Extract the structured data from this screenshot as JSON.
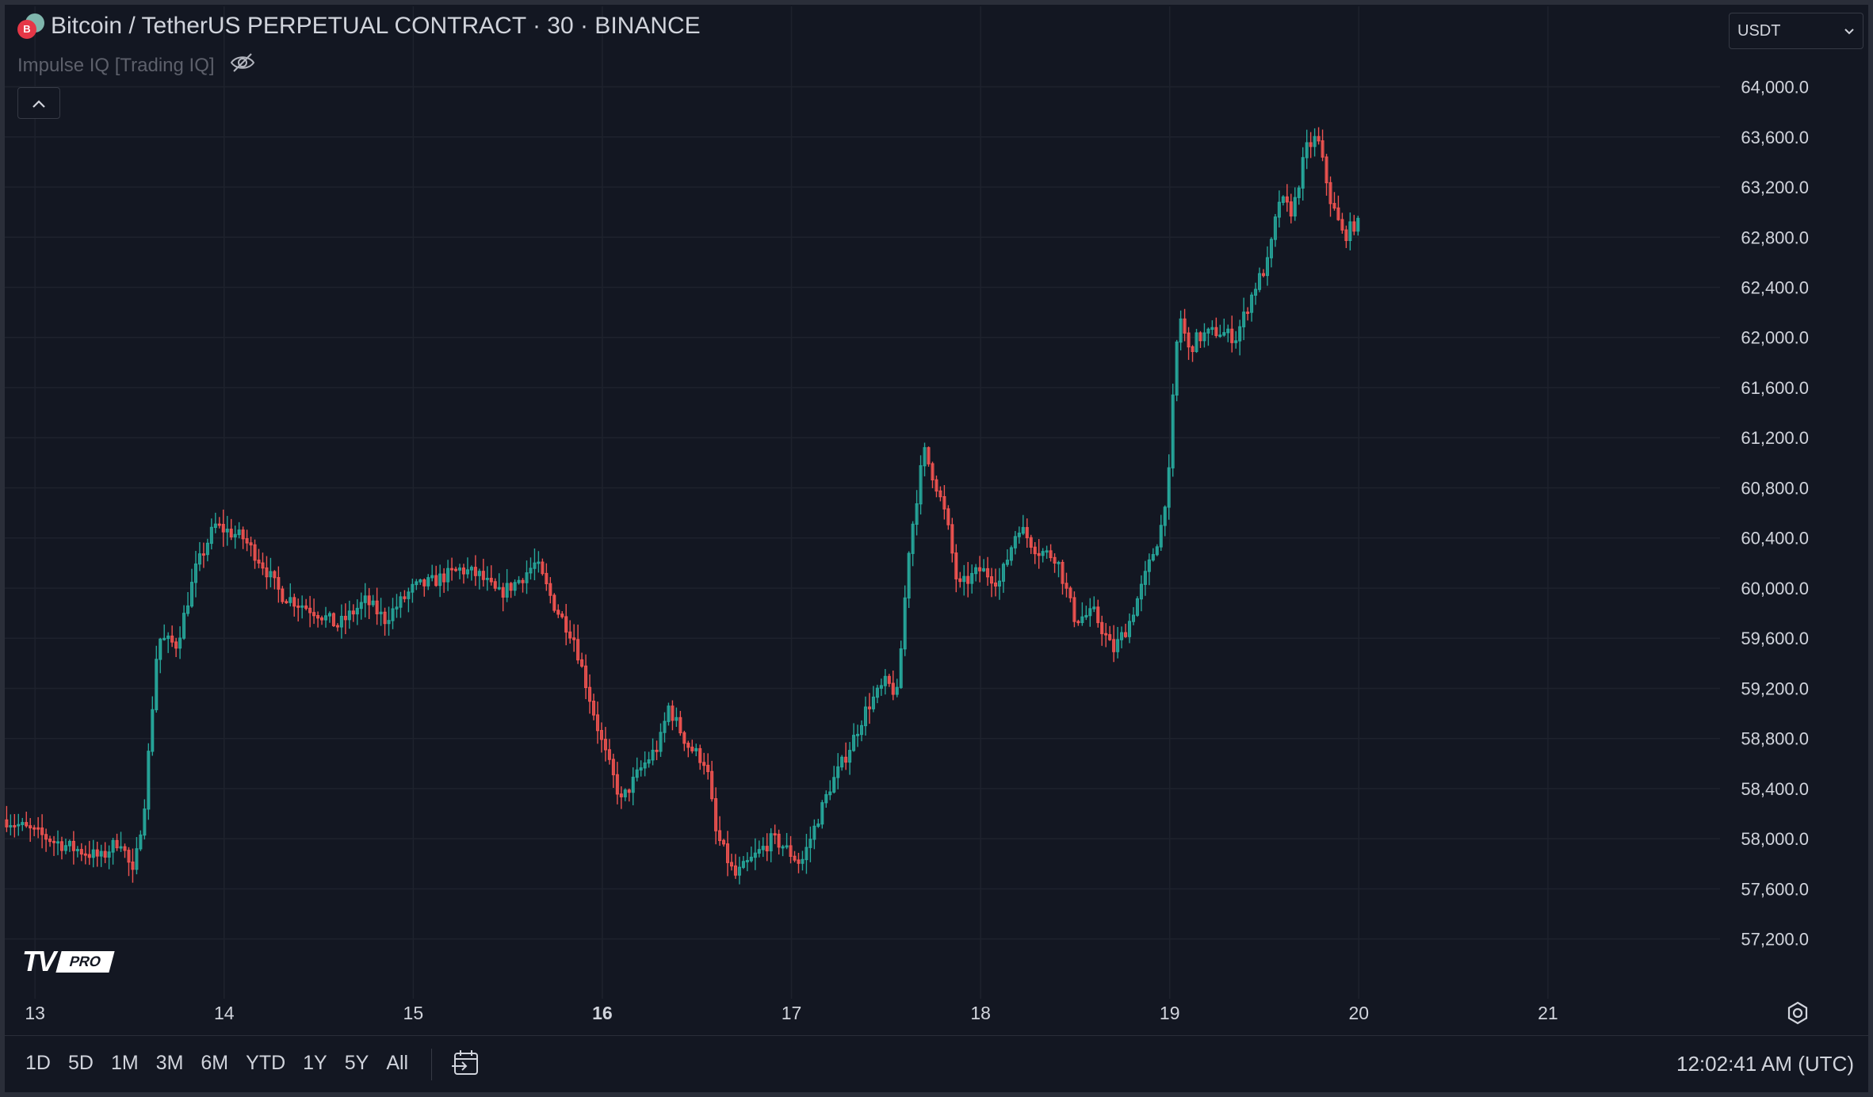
{
  "header": {
    "coin_badge": "B",
    "symbol_title": "Bitcoin / TetherUS PERPETUAL CONTRACT · 30 · BINANCE",
    "indicator_name": "Impulse IQ [Trading IQ]",
    "collapse_icon": "chevron-up-icon",
    "visibility_icon": "eye-off-icon"
  },
  "currency_select": {
    "value": "USDT"
  },
  "logo": {
    "mark": "TV",
    "badge": "PRO"
  },
  "bottom_bar": {
    "ranges": [
      "1D",
      "5D",
      "1M",
      "3M",
      "6M",
      "YTD",
      "1Y",
      "5Y",
      "All"
    ],
    "goto_date_icon": "calendar-arrow-icon",
    "clock": "12:02:41 AM (UTC)"
  },
  "colors": {
    "background": "#131722",
    "grid": "#1e222d",
    "up": "#26a69a",
    "down": "#ef5350",
    "text": "#d1d4dc"
  },
  "chart_data": {
    "type": "candlestick",
    "title": "",
    "xlabel": "",
    "ylabel": "",
    "interval": "30",
    "x_ticks": [
      "13",
      "14",
      "15",
      "16",
      "17",
      "18",
      "19",
      "20",
      "21"
    ],
    "bold_x_tick": "16",
    "y_ticks": [
      "64,000.0",
      "63,600.0",
      "63,200.0",
      "62,800.0",
      "62,400.0",
      "62,000.0",
      "61,600.0",
      "61,200.0",
      "60,800.0",
      "60,400.0",
      "60,000.0",
      "59,600.0",
      "59,200.0",
      "58,800.0",
      "58,400.0",
      "58,000.0",
      "57,600.0",
      "57,200.0"
    ],
    "ylim": [
      56850,
      64250
    ],
    "xlim_days": [
      12.84,
      21.91
    ],
    "grid": true,
    "close_path": [
      [
        12.85,
        58150
      ],
      [
        13.0,
        58050
      ],
      [
        13.15,
        57950
      ],
      [
        13.35,
        57850
      ],
      [
        13.45,
        58000
      ],
      [
        13.52,
        57700
      ],
      [
        13.58,
        58300
      ],
      [
        13.65,
        59600
      ],
      [
        13.75,
        59550
      ],
      [
        13.85,
        60150
      ],
      [
        13.95,
        60500
      ],
      [
        14.1,
        60400
      ],
      [
        14.2,
        60200
      ],
      [
        14.3,
        59950
      ],
      [
        14.5,
        59800
      ],
      [
        14.6,
        59700
      ],
      [
        14.75,
        59900
      ],
      [
        14.85,
        59750
      ],
      [
        15.0,
        60000
      ],
      [
        15.1,
        60050
      ],
      [
        15.25,
        60150
      ],
      [
        15.35,
        60100
      ],
      [
        15.45,
        59950
      ],
      [
        15.55,
        60050
      ],
      [
        15.65,
        60200
      ],
      [
        15.75,
        59850
      ],
      [
        15.85,
        59600
      ],
      [
        15.92,
        59200
      ],
      [
        16.0,
        58750
      ],
      [
        16.1,
        58300
      ],
      [
        16.2,
        58550
      ],
      [
        16.3,
        58750
      ],
      [
        16.35,
        59050
      ],
      [
        16.45,
        58750
      ],
      [
        16.55,
        58600
      ],
      [
        16.6,
        58050
      ],
      [
        16.7,
        57700
      ],
      [
        16.8,
        57850
      ],
      [
        16.9,
        58000
      ],
      [
        16.95,
        57950
      ],
      [
        17.05,
        57800
      ],
      [
        17.1,
        58000
      ],
      [
        17.2,
        58400
      ],
      [
        17.3,
        58700
      ],
      [
        17.4,
        59050
      ],
      [
        17.5,
        59250
      ],
      [
        17.56,
        59150
      ],
      [
        17.62,
        60300
      ],
      [
        17.7,
        61100
      ],
      [
        17.76,
        60850
      ],
      [
        17.82,
        60550
      ],
      [
        17.88,
        60000
      ],
      [
        18.0,
        60150
      ],
      [
        18.1,
        60050
      ],
      [
        18.2,
        60500
      ],
      [
        18.3,
        60300
      ],
      [
        18.4,
        60250
      ],
      [
        18.5,
        59750
      ],
      [
        18.6,
        59800
      ],
      [
        18.7,
        59500
      ],
      [
        18.78,
        59700
      ],
      [
        18.85,
        60000
      ],
      [
        18.95,
        60450
      ],
      [
        19.0,
        60950
      ],
      [
        19.02,
        61600
      ],
      [
        19.05,
        62200
      ],
      [
        19.1,
        61900
      ],
      [
        19.15,
        62000
      ],
      [
        19.25,
        62050
      ],
      [
        19.35,
        62000
      ],
      [
        19.45,
        62400
      ],
      [
        19.52,
        62600
      ],
      [
        19.58,
        63100
      ],
      [
        19.65,
        63000
      ],
      [
        19.72,
        63500
      ],
      [
        19.78,
        63600
      ],
      [
        19.85,
        63100
      ],
      [
        19.92,
        62800
      ],
      [
        19.97,
        62900
      ],
      [
        20.0,
        62900
      ]
    ]
  }
}
